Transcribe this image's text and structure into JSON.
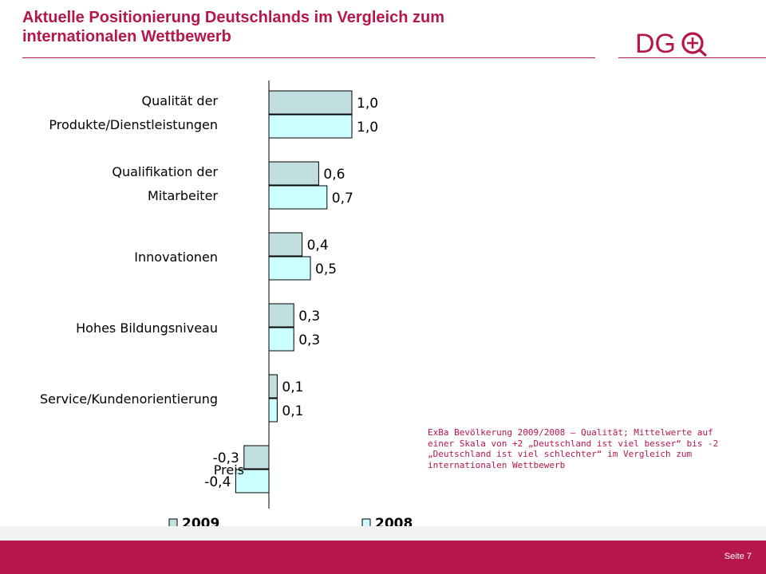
{
  "header": {
    "title_line1": "Aktuelle Positionierung Deutschlands  im Vergleich zum",
    "title_line2": "internationalen Wettbewerb",
    "logo_text": "DGQ"
  },
  "colors": {
    "accent": "#b5174a",
    "bar_2009": "#c1dfe0",
    "bar_2008": "#ccffff"
  },
  "chart_data": {
    "type": "bar",
    "orientation": "horizontal",
    "categories": [
      [
        "Qualität der",
        "Produkte/Dienstleistungen"
      ],
      [
        "Qualifikation der",
        "Mitarbeiter"
      ],
      [
        "Innovationen"
      ],
      [
        "Hohes Bildungsniveau"
      ],
      [
        "Service/Kundenorientierung"
      ],
      [
        "Preis"
      ]
    ],
    "series": [
      {
        "name": "2009",
        "values": [
          1.0,
          0.6,
          0.4,
          0.3,
          0.1,
          -0.3
        ],
        "labels": [
          "1,0",
          "0,6",
          "0,4",
          "0,3",
          "0,1",
          "-0,3"
        ]
      },
      {
        "name": "2008",
        "values": [
          1.0,
          0.7,
          0.5,
          0.3,
          0.1,
          -0.4
        ],
        "labels": [
          "1,0",
          "0,7",
          "0,5",
          "0,3",
          "0,1",
          "-0,4"
        ]
      }
    ],
    "legend_position": "bottom",
    "grid": false
  },
  "note": "ExBa Bevölkerung 2009/2008 – Qualität; Mittelwerte auf\neiner Skala von +2 „Deutschland ist viel besser“ bis -2\n„Deutschland ist viel schlechter“ im Vergleich zum\ninternationalen Wettbewerb",
  "footer": {
    "page": "Seite 7"
  }
}
